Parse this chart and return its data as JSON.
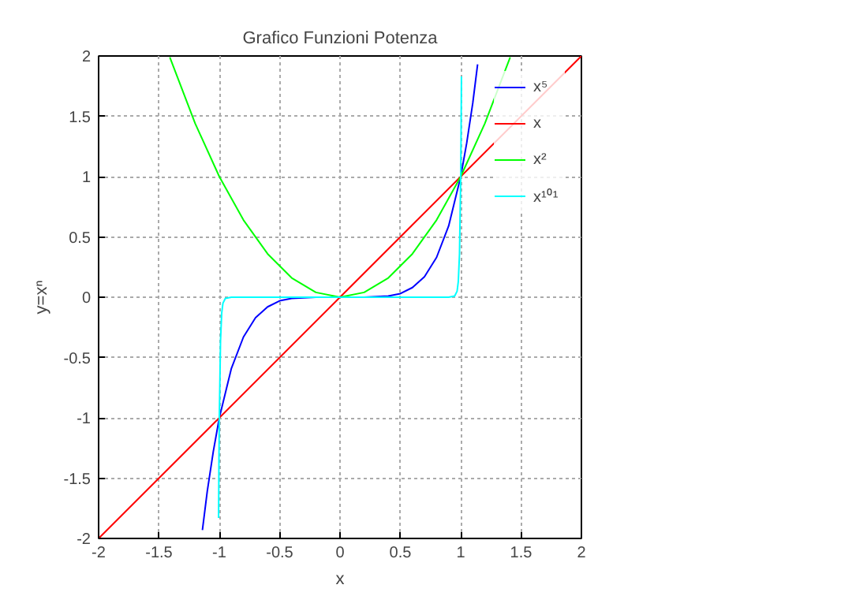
{
  "chart_data": {
    "type": "line",
    "title": "Grafico Funzioni Potenza",
    "xlabel": "x",
    "ylabel": "y=xⁿ",
    "xlim": [
      -2,
      2
    ],
    "ylim": [
      -2,
      2
    ],
    "xticks": [
      -2,
      -1.5,
      -1,
      -0.5,
      0,
      0.5,
      1,
      1.5,
      2
    ],
    "yticks": [
      -2,
      -1.5,
      -1,
      -0.5,
      0,
      0.5,
      1,
      1.5,
      2
    ],
    "grid": true,
    "legend": "top right",
    "line_style": "solid",
    "marker": "none",
    "series": [
      {
        "name": "x⁵",
        "color": "#0000ff",
        "x": [
          -1.14,
          -1.1,
          -1.05,
          -1,
          -0.9,
          -0.8,
          -0.7,
          -0.6,
          -0.5,
          -0.4,
          -0.2,
          0,
          0.2,
          0.4,
          0.5,
          0.6,
          0.7,
          0.8,
          0.9,
          1,
          1.05,
          1.1,
          1.14
        ],
        "values": [
          -1.93,
          -1.61,
          -1.28,
          -1,
          -0.59,
          -0.33,
          -0.17,
          -0.08,
          -0.03,
          -0.01,
          0,
          0,
          0,
          0.01,
          0.03,
          0.08,
          0.17,
          0.33,
          0.59,
          1,
          1.28,
          1.61,
          1.93
        ]
      },
      {
        "name": "x",
        "color": "#ff0000",
        "x": [
          -2,
          2
        ],
        "values": [
          -2,
          2
        ]
      },
      {
        "name": "x²",
        "color": "#00ff00",
        "x": [
          -1.41,
          -1.2,
          -1,
          -0.8,
          -0.6,
          -0.4,
          -0.2,
          0,
          0.2,
          0.4,
          0.6,
          0.8,
          1,
          1.2,
          1.41
        ],
        "values": [
          1.99,
          1.44,
          1,
          0.64,
          0.36,
          0.16,
          0.04,
          0,
          0.04,
          0.16,
          0.36,
          0.64,
          1,
          1.44,
          1.99
        ]
      },
      {
        "name": "x¹⁰¹",
        "color": "#00ffff",
        "x": [
          -1.006,
          -1.003,
          -1,
          -0.99,
          -0.98,
          -0.97,
          -0.95,
          -0.9,
          0,
          0.9,
          0.95,
          0.97,
          0.98,
          0.99,
          1,
          1.003,
          1.006
        ],
        "values": [
          -1.83,
          -1.35,
          -1,
          -0.36,
          -0.13,
          -0.05,
          -0.01,
          0,
          0,
          0,
          0.01,
          0.05,
          0.13,
          0.36,
          1,
          1.35,
          1.83
        ]
      }
    ]
  }
}
